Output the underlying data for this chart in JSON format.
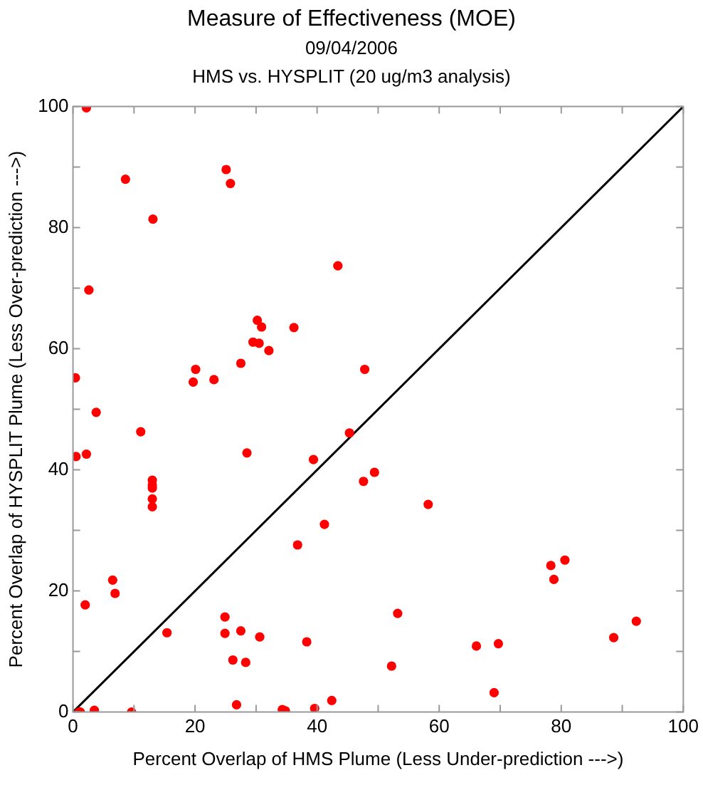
{
  "chart_data": {
    "type": "scatter",
    "title": "Measure of Effectiveness (MOE)",
    "subtitle": [
      "09/04/2006",
      "HMS vs. HYSPLIT  (20 ug/m3 analysis)"
    ],
    "xlabel": "Percent Overlap of HMS Plume (Less Under-prediction --->)",
    "ylabel": "Percent Overlap of HYSPLIT Plume (Less Over-prediction --->)",
    "xlim": [
      0,
      100
    ],
    "ylim": [
      0,
      100
    ],
    "xticks": [
      0,
      {
        "value": 10,
        "label": null
      },
      20,
      {
        "value": 30,
        "label": null
      },
      40,
      {
        "value": 50,
        "label": null
      },
      60,
      {
        "value": 70,
        "label": null
      },
      80,
      {
        "value": 90,
        "label": null
      },
      100
    ],
    "yticks": [
      0,
      {
        "value": 10,
        "label": null
      },
      20,
      {
        "value": 30,
        "label": null
      },
      40,
      {
        "value": 50,
        "label": null
      },
      60,
      {
        "value": 70,
        "label": null
      },
      80,
      {
        "value": 90,
        "label": null
      },
      100
    ],
    "grid": false,
    "legend": false,
    "marker": "circle",
    "series": [
      {
        "color": "#ff0000",
        "x": [
          3.8,
          11.1,
          0.5,
          2.2,
          28.5,
          39.4,
          45.3,
          47.6,
          49.4,
          13.0,
          13.0,
          13.0,
          13.0,
          13.0,
          41.2,
          36.8,
          6.5,
          6.9,
          2.0,
          15.4,
          24.9,
          24.9,
          27.5,
          30.6,
          38.3,
          26.2,
          28.3,
          26.8,
          34.3,
          34.8,
          39.6,
          42.4,
          1.0,
          1.2,
          3.5,
          9.6,
          2.2,
          8.6,
          13.1,
          25.1,
          25.8,
          43.4,
          2.6,
          30.2,
          30.9,
          29.5,
          30.5,
          32.1,
          36.2,
          27.5,
          47.8,
          20.1,
          19.7,
          23.1,
          0.4,
          58.2,
          78.3,
          80.6,
          78.8,
          53.2,
          52.2,
          66.1,
          69.7,
          69.0,
          88.6,
          92.3
        ],
        "values": [
          49.5,
          46.3,
          42.2,
          42.6,
          42.8,
          41.7,
          46.1,
          38.1,
          39.6,
          38.3,
          37.5,
          37.0,
          35.2,
          33.9,
          31.0,
          27.6,
          21.8,
          19.6,
          17.7,
          13.1,
          15.7,
          13.0,
          13.4,
          12.4,
          11.6,
          8.6,
          8.2,
          1.2,
          0.4,
          0.2,
          0.6,
          1.9,
          0,
          0,
          0.3,
          0,
          99.8,
          88.0,
          81.4,
          89.6,
          87.3,
          73.7,
          69.7,
          64.7,
          63.6,
          61.1,
          60.9,
          59.7,
          63.5,
          57.6,
          56.6,
          56.6,
          54.5,
          54.9,
          55.2,
          34.3,
          24.2,
          25.1,
          21.9,
          16.3,
          7.6,
          10.9,
          11.3,
          3.2,
          12.3,
          15.0
        ]
      },
      {
        "type": "line",
        "color": "#000000",
        "x": [
          0,
          100
        ],
        "values": [
          0,
          100
        ],
        "marker": "none"
      }
    ]
  }
}
